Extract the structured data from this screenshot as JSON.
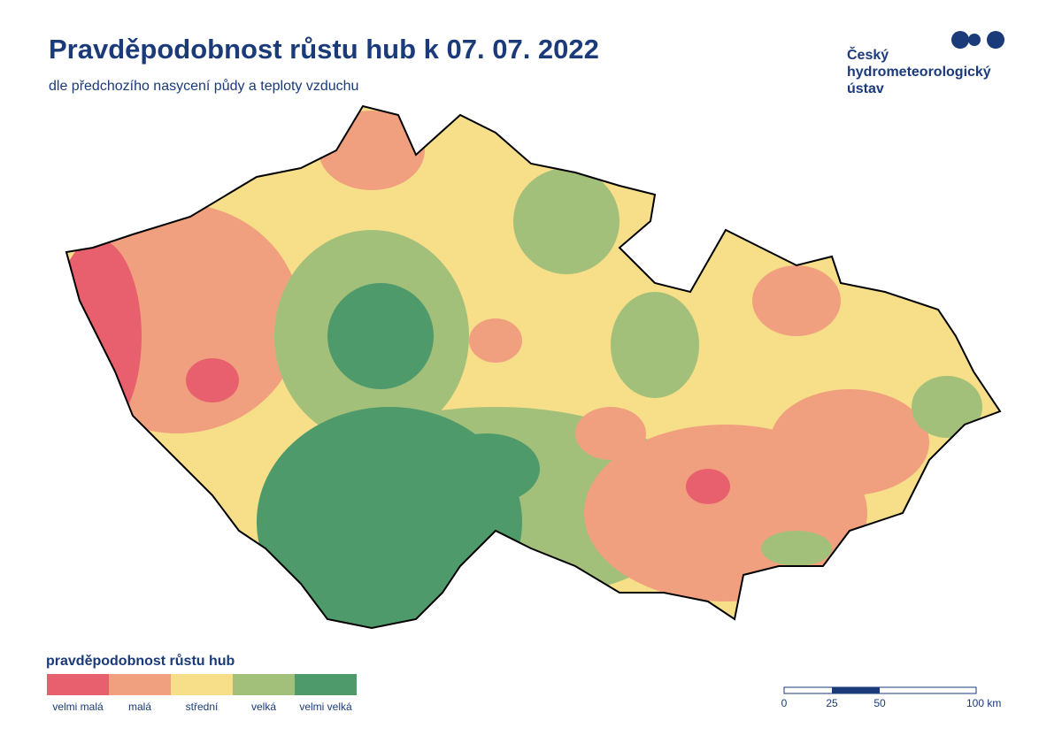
{
  "header": {
    "title": "Pravděpodobnost růstu hub k 07. 07. 2022",
    "subtitle": "dle předchozího nasycení půdy a teploty vzduchu"
  },
  "logo": {
    "lines": [
      "Český",
      "hydrometeorologický",
      "ústav"
    ]
  },
  "legend": {
    "title": "pravděpodobnost růstu hub",
    "items": [
      {
        "label": "velmi malá",
        "color": "#e8606e"
      },
      {
        "label": "malá",
        "color": "#f0a07e"
      },
      {
        "label": "střední",
        "color": "#f7df8a"
      },
      {
        "label": "velká",
        "color": "#a3c07a"
      },
      {
        "label": "velmi velká",
        "color": "#4f9a6a"
      }
    ]
  },
  "scale_bar": {
    "labels": [
      "0",
      "25",
      "50",
      "100 km"
    ]
  }
}
